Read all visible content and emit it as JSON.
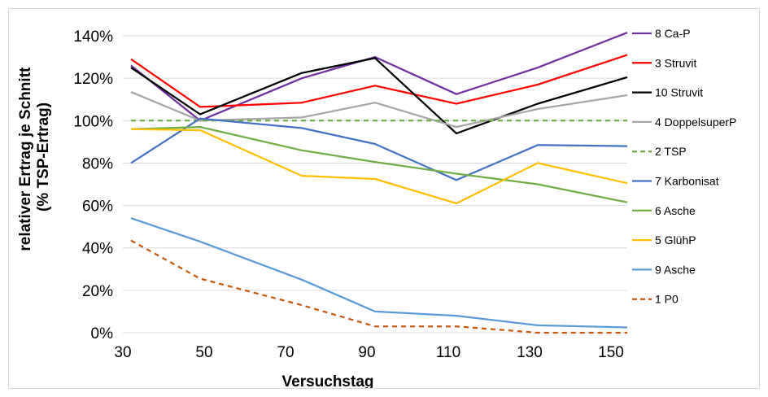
{
  "chart_data": {
    "type": "line",
    "title": "",
    "xlabel": "Versuchstag",
    "ylabel": "relativer Ertrag je Schnitt",
    "ylabel_line2": "(% TSP-Ertrag)",
    "xlim": [
      30,
      154
    ],
    "ylim": [
      0,
      145
    ],
    "x_ticks": [
      30,
      50,
      70,
      90,
      110,
      130,
      150
    ],
    "x_tick_labels": [
      "30",
      "50",
      "70",
      "90",
      "110",
      "130",
      "150"
    ],
    "y_ticks": [
      0,
      20,
      40,
      60,
      80,
      100,
      120,
      140
    ],
    "y_tick_labels": [
      "0%",
      "20%",
      "40%",
      "60%",
      "80%",
      "100%",
      "120%",
      "140%"
    ],
    "grid": "horizontal",
    "legend_position": "right",
    "x": [
      32,
      49,
      74,
      92,
      112,
      132,
      154
    ],
    "series": [
      {
        "name": "8 Ca-P",
        "color": "#7030a0",
        "dash": "solid",
        "values": [
          126,
          100,
          120,
          130,
          112.5,
          125,
          141.5
        ]
      },
      {
        "name": "3 Struvit",
        "color": "#ff0000",
        "dash": "solid",
        "values": [
          129,
          106.5,
          108.5,
          116.5,
          108,
          117,
          131
        ]
      },
      {
        "name": "10 Struvit",
        "color": "#000000",
        "dash": "solid",
        "values": [
          125,
          103,
          122.5,
          129.5,
          94,
          108,
          120.5
        ]
      },
      {
        "name": "4 DoppelsuperP",
        "color": "#a6a6a6",
        "dash": "solid",
        "values": [
          113.5,
          100,
          101.5,
          108.5,
          97,
          105.5,
          112
        ]
      },
      {
        "name": "2 TSP",
        "color": "#70ad47",
        "dash": "dashed",
        "values": [
          100,
          100,
          100,
          100,
          100,
          100,
          100
        ]
      },
      {
        "name": "7 Karbonisat",
        "color": "#4472c4",
        "dash": "solid",
        "values": [
          80,
          101,
          96.5,
          89,
          72,
          88.5,
          88
        ]
      },
      {
        "name": "6 Asche",
        "color": "#70ad47",
        "dash": "solid",
        "values": [
          96,
          97,
          86,
          80.5,
          75,
          70,
          61.5
        ]
      },
      {
        "name": "5 GlühP",
        "color": "#ffc000",
        "dash": "solid",
        "values": [
          96,
          95.5,
          74,
          72.5,
          61,
          80,
          70.5
        ]
      },
      {
        "name": "9 Asche",
        "color": "#5b9bd5",
        "dash": "solid",
        "values": [
          54,
          43,
          25,
          10,
          8,
          3.5,
          2.5
        ]
      },
      {
        "name": "1 P0",
        "color": "#c55a11",
        "dash": "dashed",
        "values": [
          43.5,
          25.5,
          13,
          3,
          3,
          0,
          0
        ]
      }
    ]
  }
}
